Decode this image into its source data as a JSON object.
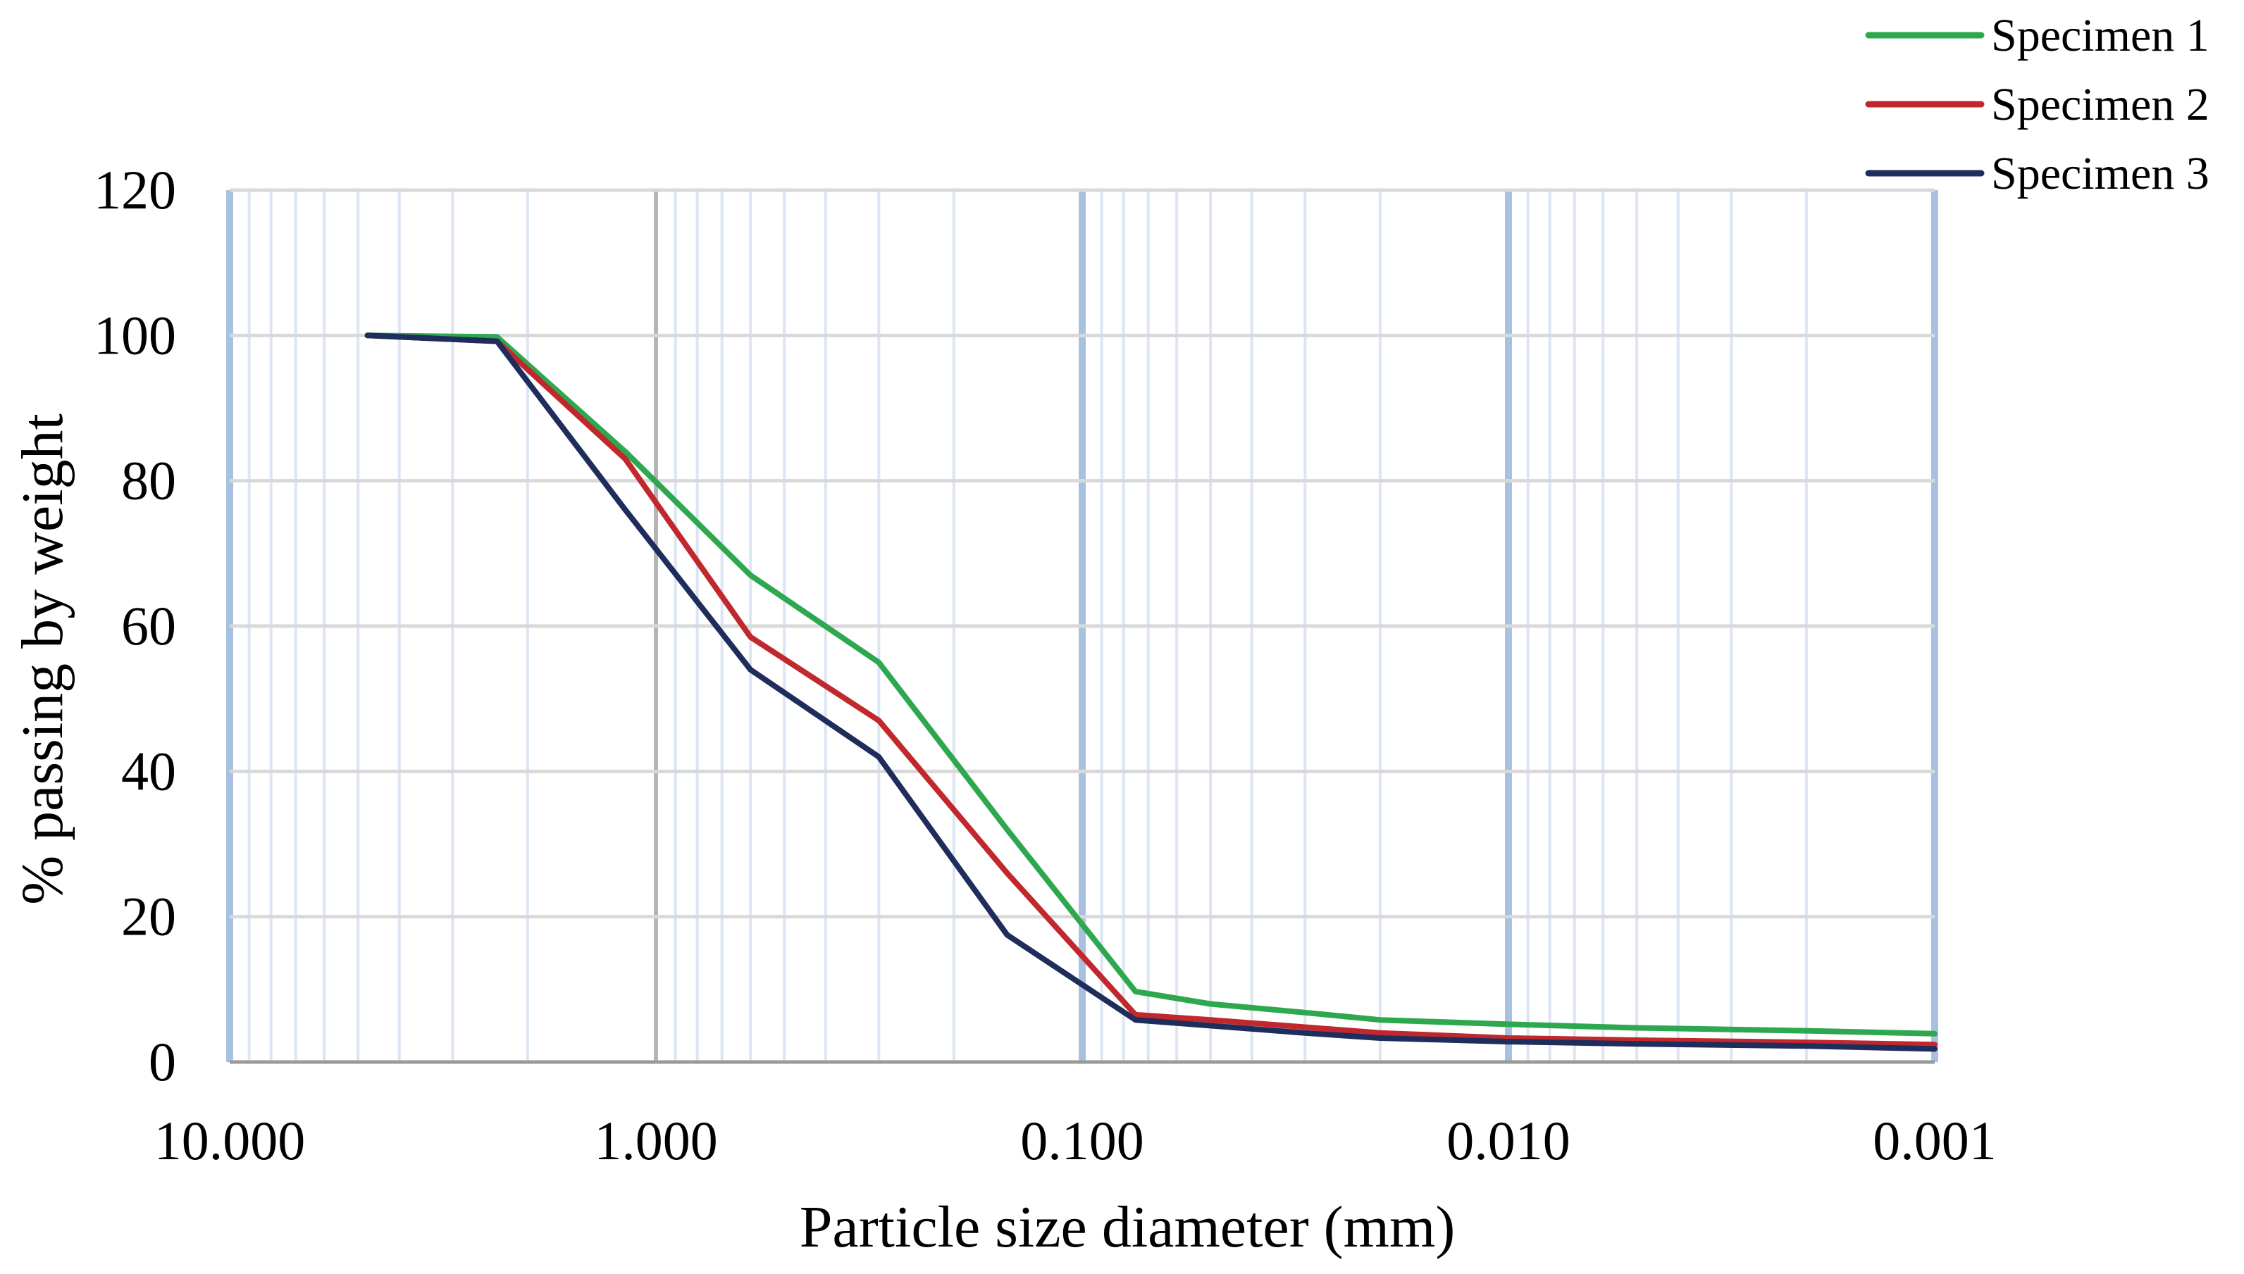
{
  "chart_data": {
    "type": "line",
    "title": "",
    "xlabel": "Particle size diameter (mm)",
    "ylabel": "% passing by weight",
    "x_scale": "log",
    "x_reversed": true,
    "xlim": [
      10,
      0.001
    ],
    "ylim": [
      0,
      120
    ],
    "x_ticks": [
      10,
      1,
      0.1,
      0.01,
      0.001
    ],
    "x_tick_labels": [
      "10.000",
      "1.000",
      "0.100",
      "0.010",
      "0.001"
    ],
    "y_ticks": [
      0,
      20,
      40,
      60,
      80,
      100,
      120
    ],
    "y_tick_labels": [
      "0",
      "20",
      "40",
      "60",
      "80",
      "100",
      "120"
    ],
    "grid": true,
    "legend_position": "top-right",
    "series": [
      {
        "name": "Specimen 1",
        "color": "#2ea84f",
        "points": [
          [
            4.75,
            100
          ],
          [
            2.36,
            99.8
          ],
          [
            1.18,
            84
          ],
          [
            0.6,
            67
          ],
          [
            0.3,
            55
          ],
          [
            0.15,
            32
          ],
          [
            0.075,
            9.7
          ],
          [
            0.05,
            8
          ],
          [
            0.03,
            6.8
          ],
          [
            0.02,
            5.8
          ],
          [
            0.01,
            5.2
          ],
          [
            0.005,
            4.7
          ],
          [
            0.002,
            4.3
          ],
          [
            0.001,
            3.9
          ]
        ]
      },
      {
        "name": "Specimen 2",
        "color": "#c0282d",
        "points": [
          [
            4.75,
            100
          ],
          [
            2.36,
            99.2
          ],
          [
            1.18,
            83
          ],
          [
            0.6,
            58.5
          ],
          [
            0.3,
            47
          ],
          [
            0.15,
            26
          ],
          [
            0.075,
            6.5
          ],
          [
            0.05,
            5.8
          ],
          [
            0.03,
            4.8
          ],
          [
            0.02,
            4
          ],
          [
            0.01,
            3.3
          ],
          [
            0.005,
            3
          ],
          [
            0.002,
            2.7
          ],
          [
            0.001,
            2.4
          ]
        ]
      },
      {
        "name": "Specimen 3",
        "color": "#1f2d5c",
        "points": [
          [
            4.75,
            100
          ],
          [
            2.36,
            99.2
          ],
          [
            1.18,
            76
          ],
          [
            0.6,
            54
          ],
          [
            0.3,
            42
          ],
          [
            0.15,
            17.5
          ],
          [
            0.075,
            5.8
          ],
          [
            0.05,
            5
          ],
          [
            0.03,
            4
          ],
          [
            0.02,
            3.3
          ],
          [
            0.01,
            2.8
          ],
          [
            0.005,
            2.5
          ],
          [
            0.002,
            2.2
          ],
          [
            0.001,
            1.8
          ]
        ]
      }
    ]
  }
}
